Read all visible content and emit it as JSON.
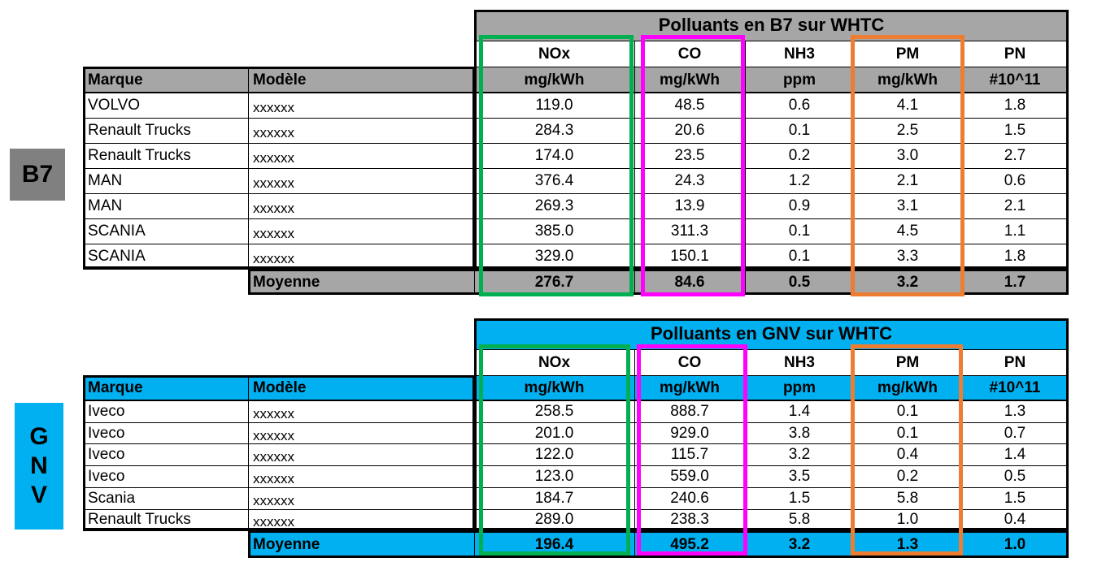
{
  "colors": {
    "b7_header": "#a6a6a6",
    "gnv_header": "#00b0f0",
    "nox_frame": "#00b050",
    "co_frame": "#ff00ff",
    "pm_frame": "#ed7d31"
  },
  "b7": {
    "side_label": "B7",
    "title": "Polluants en B7 sur WHTC",
    "pollutants": [
      "NOx",
      "CO",
      "NH3",
      "PM",
      "PN"
    ],
    "units": [
      "mg/kWh",
      "mg/kWh",
      "ppm",
      "mg/kWh",
      "#10^11"
    ],
    "col_marque": "Marque",
    "col_modele": "Modèle",
    "rows": [
      [
        "VOLVO",
        "xxxxxx",
        "119.0",
        "48.5",
        "0.6",
        "4.1",
        "1.8"
      ],
      [
        "Renault Trucks",
        "xxxxxx",
        "284.3",
        "20.6",
        "0.1",
        "2.5",
        "1.5"
      ],
      [
        "Renault Trucks",
        "xxxxxx",
        "174.0",
        "23.5",
        "0.2",
        "3.0",
        "2.7"
      ],
      [
        "MAN",
        "xxxxxx",
        "376.4",
        "24.3",
        "1.2",
        "2.1",
        "0.6"
      ],
      [
        "MAN",
        "xxxxxx",
        "269.3",
        "13.9",
        "0.9",
        "3.1",
        "2.1"
      ],
      [
        "SCANIA",
        "xxxxxx",
        "385.0",
        "311.3",
        "0.1",
        "4.5",
        "1.1"
      ],
      [
        "SCANIA",
        "xxxxxx",
        "329.0",
        "150.1",
        "0.1",
        "3.3",
        "1.8"
      ]
    ],
    "avg_label": "Moyenne",
    "avg": [
      "276.7",
      "84.6",
      "0.5",
      "3.2",
      "1.7"
    ]
  },
  "gnv": {
    "side_label": [
      "G",
      "N",
      "V"
    ],
    "title": "Polluants en GNV sur WHTC",
    "pollutants": [
      "NOx",
      "CO",
      "NH3",
      "PM",
      "PN"
    ],
    "units": [
      "mg/kWh",
      "mg/kWh",
      "ppm",
      "mg/kWh",
      "#10^11"
    ],
    "col_marque": "Marque",
    "col_modele": "Modèle",
    "rows": [
      [
        "Iveco",
        "xxxxxx",
        "258.5",
        "888.7",
        "1.4",
        "0.1",
        "1.3"
      ],
      [
        "Iveco",
        "xxxxxx",
        "201.0",
        "929.0",
        "3.8",
        "0.1",
        "0.7"
      ],
      [
        "Iveco",
        "xxxxxx",
        "122.0",
        "115.7",
        "3.2",
        "0.4",
        "1.4"
      ],
      [
        "Iveco",
        "xxxxxx",
        "123.0",
        "559.0",
        "3.5",
        "0.2",
        "0.5"
      ],
      [
        "Scania",
        "xxxxxx",
        "184.7",
        "240.6",
        "1.5",
        "5.8",
        "1.5"
      ],
      [
        "Renault Trucks",
        "xxxxxx",
        "289.0",
        "238.3",
        "5.8",
        "1.0",
        "0.4"
      ]
    ],
    "avg_label": "Moyenne",
    "avg": [
      "196.4",
      "495.2",
      "3.2",
      "1.3",
      "1.0"
    ]
  }
}
